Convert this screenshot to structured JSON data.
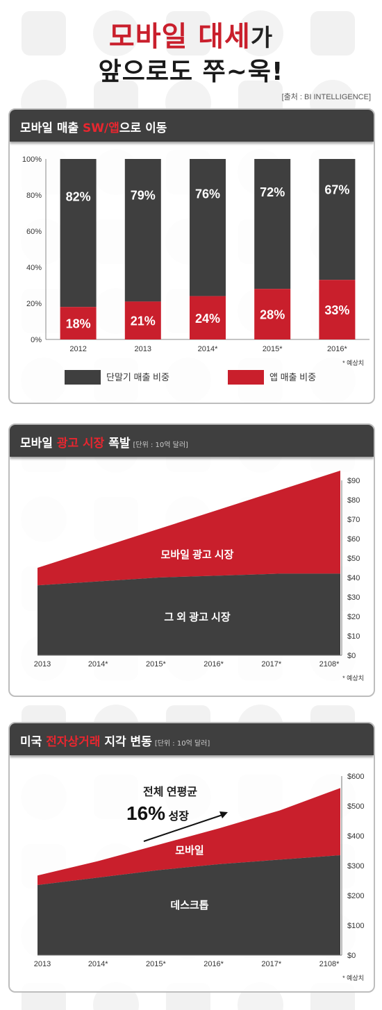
{
  "header": {
    "title_line1_red": "모바일 대세",
    "title_line1_black": "가",
    "title_line2": "앞으로도 쭈~욱!",
    "source": "[출처 : BI INTELLIGENCE]"
  },
  "panels": {
    "p1": {
      "title_a": "모바일 매출 ",
      "title_hl": "SW/앱",
      "title_b": "으로 이동"
    },
    "p2": {
      "title_a": "모바일 ",
      "title_hl": "광고 시장",
      "title_b": " 폭발",
      "unit": "[단위 : 10억 달러]"
    },
    "p3": {
      "title_a": "미국 ",
      "title_hl": "전자상거래",
      "title_b": " 지각 변동",
      "unit": "[단위 : 10억 달러]"
    }
  },
  "colors": {
    "dark": "#3f3f3f",
    "red": "#c91f2c",
    "header": "#3f3f3f"
  },
  "chart_data": [
    {
      "type": "bar",
      "stacked": true,
      "categories": [
        "2012",
        "2013",
        "2014*",
        "2015*",
        "2016*"
      ],
      "series": [
        {
          "name": "앱 매출 비중",
          "values": [
            18,
            21,
            24,
            28,
            33
          ],
          "labels": [
            "18%",
            "21%",
            "24%",
            "28%",
            "33%"
          ],
          "color": "#c91f2c"
        },
        {
          "name": "단말기 매출 비중",
          "values": [
            82,
            79,
            76,
            72,
            67
          ],
          "labels": [
            "82%",
            "79%",
            "76%",
            "72%",
            "67%"
          ],
          "color": "#3f3f3f"
        }
      ],
      "yticks": [
        "0%",
        "20%",
        "40%",
        "60%",
        "80%",
        "100%"
      ],
      "ylim": [
        0,
        100
      ],
      "note": "* 예상치",
      "legend_position": "bottom"
    },
    {
      "type": "area",
      "stacked": true,
      "x": [
        "2013",
        "2014*",
        "2015*",
        "2016*",
        "2017*",
        "2108*"
      ],
      "series": [
        {
          "name": "그 외 광고 시장",
          "values": [
            36,
            38,
            40,
            41,
            42,
            42
          ],
          "color": "#3f3f3f"
        },
        {
          "name": "모바일 광고 시장",
          "values": [
            9,
            17,
            25,
            34,
            43,
            53
          ],
          "color": "#c91f2c"
        }
      ],
      "yticks": [
        "$0",
        "$10",
        "$20",
        "$30",
        "$40",
        "$50",
        "$60",
        "$70",
        "$80",
        "$90"
      ],
      "ylim": [
        0,
        90
      ],
      "note": "* 예상치"
    },
    {
      "type": "area",
      "stacked": true,
      "x": [
        "2013",
        "2014*",
        "2015*",
        "2016*",
        "2017*",
        "2108*"
      ],
      "series": [
        {
          "name": "데스크톱",
          "values": [
            235,
            260,
            285,
            305,
            320,
            335
          ],
          "color": "#3f3f3f"
        },
        {
          "name": "모바일",
          "values": [
            32,
            55,
            85,
            120,
            165,
            225
          ],
          "color": "#c91f2c"
        }
      ],
      "yticks": [
        "$0",
        "$100",
        "$200",
        "$300",
        "$400",
        "$500",
        "$600"
      ],
      "ylim": [
        0,
        600
      ],
      "annotation_line1": "전체 연평균",
      "annotation_pct": "16%",
      "annotation_word": " 성장",
      "note": "* 예상치"
    }
  ]
}
